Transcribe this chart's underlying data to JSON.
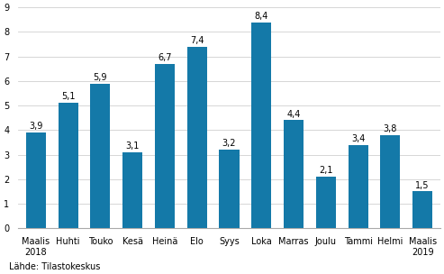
{
  "categories": [
    "Maalis\n2018",
    "Huhti",
    "Touko",
    "Kesä",
    "Heinä",
    "Elo",
    "Syys",
    "Loka",
    "Marras",
    "Joulu",
    "Tammi",
    "Helmi",
    "Maalis\n2019"
  ],
  "values": [
    3.9,
    5.1,
    5.9,
    3.1,
    6.7,
    7.4,
    3.2,
    8.4,
    4.4,
    2.1,
    3.4,
    3.8,
    1.5
  ],
  "value_labels": [
    "3,9",
    "5,1",
    "5,9",
    "3,1",
    "6,7",
    "7,4",
    "3,2",
    "8,4",
    "4,4",
    "2,1",
    "3,4",
    "3,8",
    "1,5"
  ],
  "bar_color": "#1479a8",
  "ylim": [
    0,
    9
  ],
  "yticks": [
    0,
    1,
    2,
    3,
    4,
    5,
    6,
    7,
    8,
    9
  ],
  "source_text": "Lähde: Tilastokeskus",
  "background_color": "#ffffff",
  "grid_color": "#d0d0d0",
  "tick_fontsize": 7.0,
  "value_fontsize": 7.0
}
